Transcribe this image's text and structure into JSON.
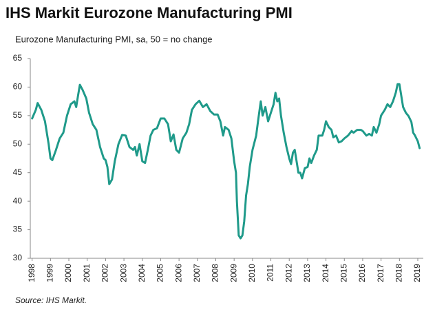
{
  "chart_data": {
    "type": "line",
    "title": "IHS Markit Eurozone Manufacturing PMI",
    "subtitle": "Eurozone Manufacturing PMI, sa, 50 = no change",
    "source": "Source: IHS Markit.",
    "color": "#1f9a8a",
    "x": [
      1998.0,
      1998.2,
      1998.3,
      1998.5,
      1998.7,
      1998.9,
      1999.0,
      1999.1,
      1999.3,
      1999.5,
      1999.7,
      1999.9,
      2000.1,
      2000.3,
      2000.4,
      2000.5,
      2000.6,
      2000.75,
      2000.95,
      2001.1,
      2001.3,
      2001.5,
      2001.7,
      2001.9,
      2002.0,
      2002.1,
      2002.2,
      2002.35,
      2002.5,
      2002.7,
      2002.9,
      2003.1,
      2003.3,
      2003.5,
      2003.6,
      2003.7,
      2003.85,
      2004.0,
      2004.15,
      2004.3,
      2004.45,
      2004.6,
      2004.8,
      2005.0,
      2005.2,
      2005.4,
      2005.55,
      2005.7,
      2005.85,
      2006.0,
      2006.2,
      2006.4,
      2006.55,
      2006.7,
      2006.9,
      2007.1,
      2007.3,
      2007.5,
      2007.7,
      2007.9,
      2008.1,
      2008.25,
      2008.4,
      2008.5,
      2008.7,
      2008.85,
      2009.0,
      2009.1,
      2009.15,
      2009.25,
      2009.35,
      2009.45,
      2009.55,
      2009.65,
      2009.75,
      2009.85,
      2010.0,
      2010.2,
      2010.3,
      2010.45,
      2010.55,
      2010.7,
      2010.85,
      2011.0,
      2011.15,
      2011.25,
      2011.35,
      2011.45,
      2011.55,
      2011.7,
      2011.85,
      2012.0,
      2012.1,
      2012.2,
      2012.3,
      2012.4,
      2012.5,
      2012.6,
      2012.7,
      2012.85,
      2013.0,
      2013.1,
      2013.2,
      2013.35,
      2013.5,
      2013.6,
      2013.8,
      2013.9,
      2014.0,
      2014.15,
      2014.3,
      2014.4,
      2014.55,
      2014.7,
      2014.85,
      2015.0,
      2015.2,
      2015.4,
      2015.5,
      2015.7,
      2015.9,
      2016.0,
      2016.2,
      2016.35,
      2016.5,
      2016.6,
      2016.75,
      2016.9,
      2017.0,
      2017.2,
      2017.35,
      2017.5,
      2017.65,
      2017.8,
      2017.9,
      2018.0,
      2018.1,
      2018.2,
      2018.35,
      2018.5,
      2018.65,
      2018.75,
      2018.85,
      2019.0,
      2019.1
    ],
    "values": [
      54.5,
      56,
      57.2,
      56,
      54,
      50,
      47.5,
      47.2,
      49,
      51,
      52,
      55,
      57,
      57.5,
      56.5,
      58.5,
      60.4,
      59.5,
      58,
      55.5,
      53.5,
      52.5,
      49.5,
      47.5,
      47.2,
      46,
      43,
      43.8,
      47,
      50,
      51.6,
      51.5,
      49.5,
      49,
      49.5,
      48,
      50,
      47,
      46.7,
      49,
      51.5,
      52.5,
      52.8,
      54.5,
      54.5,
      53.5,
      50.5,
      51.7,
      49,
      48.5,
      51,
      52,
      53.5,
      56,
      57,
      57.6,
      56.5,
      57,
      55.8,
      55.2,
      55.2,
      54,
      51.5,
      53,
      52.5,
      51,
      47,
      45,
      40,
      34,
      33.5,
      34,
      36.5,
      41,
      43,
      46,
      49,
      51.5,
      54,
      57.5,
      55,
      56.5,
      54,
      55.5,
      57,
      59,
      57.5,
      58,
      55,
      52,
      49.5,
      47.5,
      46.5,
      48.5,
      49,
      47,
      45,
      45,
      44,
      45.8,
      46,
      47.5,
      46.7,
      48,
      49,
      51.5,
      51.5,
      52.5,
      54,
      53,
      52.5,
      51.2,
      51.5,
      50.3,
      50.5,
      51,
      51.5,
      52.3,
      52,
      52.5,
      52.5,
      52.3,
      51.5,
      51.8,
      51.5,
      53,
      52,
      53.5,
      55,
      56,
      57,
      56.5,
      57.5,
      59,
      60.5,
      60.5,
      58.5,
      56.5,
      55.5,
      54.9,
      53.9,
      52,
      51.5,
      50.5,
      49.3
    ],
    "xlim": [
      1997.9,
      2019.3
    ],
    "xticks": [
      1998,
      1999,
      2000,
      2001,
      2002,
      2003,
      2004,
      2005,
      2006,
      2007,
      2008,
      2009,
      2010,
      2011,
      2012,
      2013,
      2014,
      2015,
      2016,
      2017,
      2018,
      2019
    ],
    "ylim": [
      30,
      65
    ],
    "yticks": [
      30,
      35,
      40,
      45,
      50,
      55,
      60,
      65
    ]
  }
}
